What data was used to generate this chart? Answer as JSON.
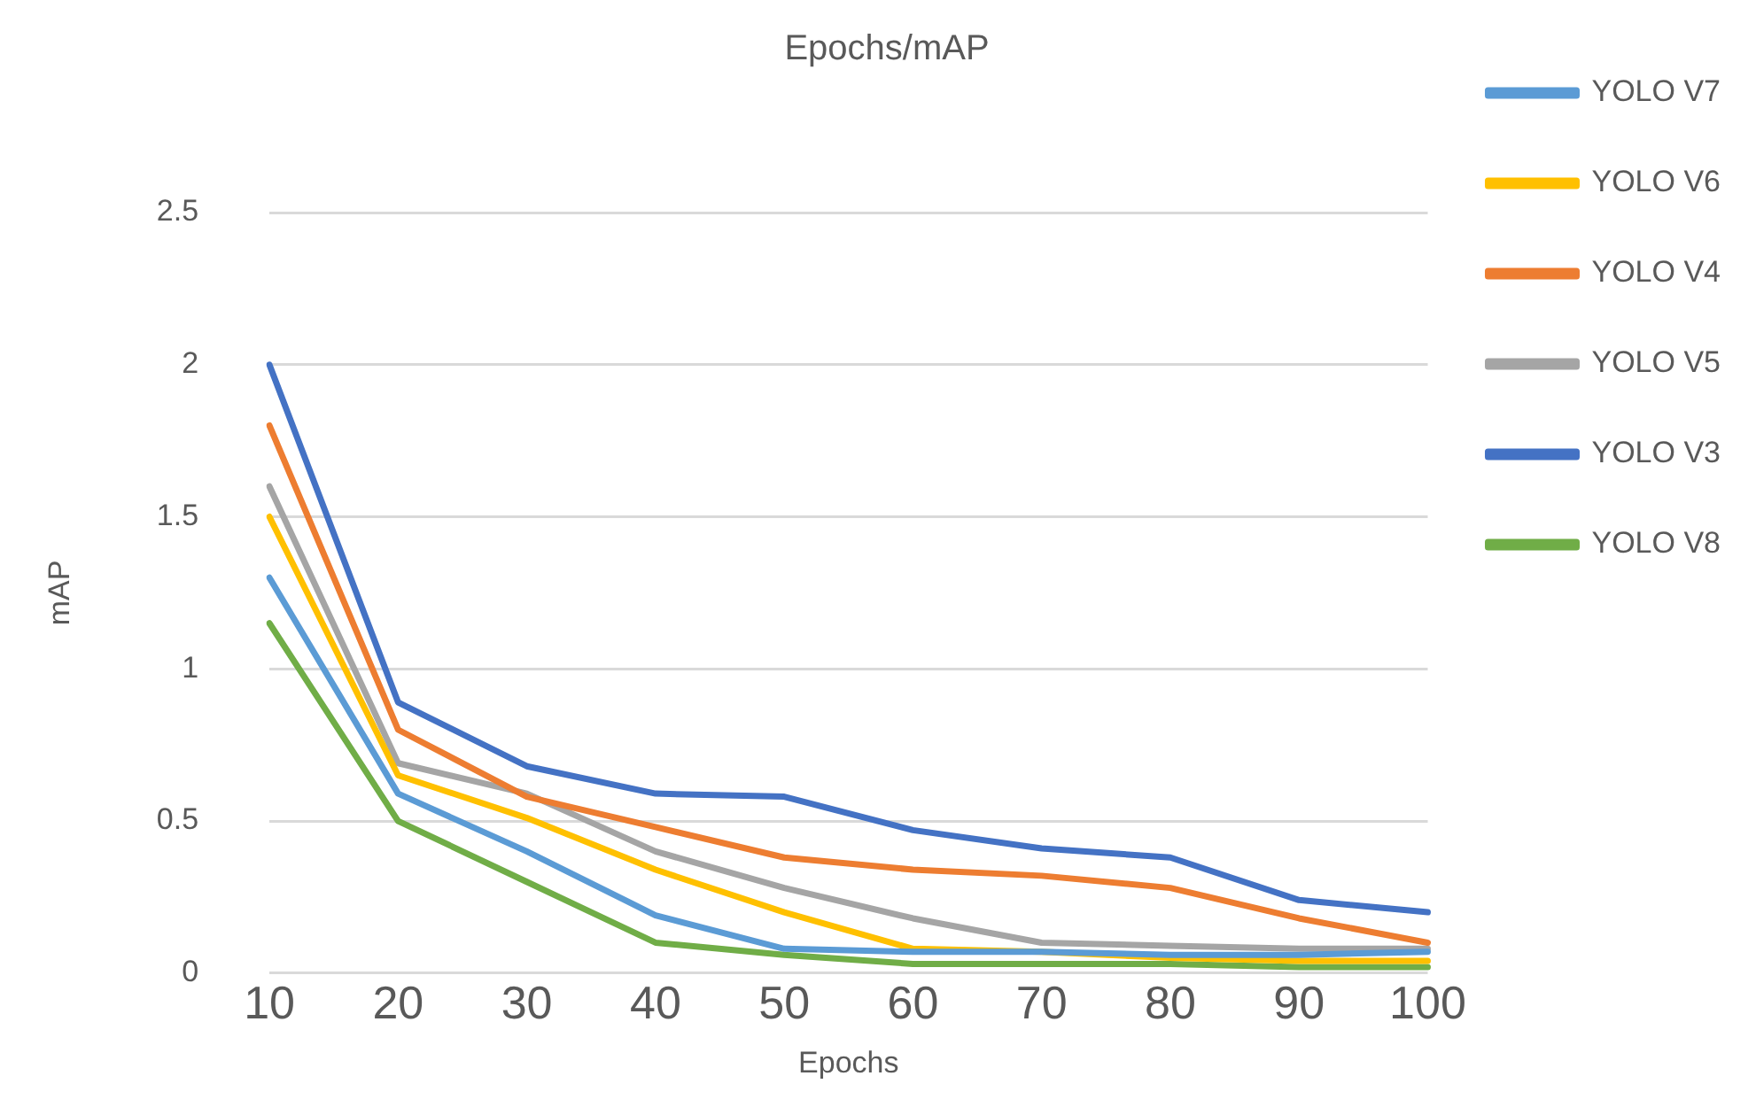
{
  "chart_data": {
    "type": "line",
    "title": "Epochs/mAP",
    "xlabel": "Epochs",
    "ylabel": "mAP",
    "categories": [
      "10",
      "20",
      "30",
      "40",
      "50",
      "60",
      "70",
      "80",
      "90",
      "100"
    ],
    "ylim": [
      0,
      2.5
    ],
    "yticks": [
      0,
      0.5,
      1,
      1.5,
      2,
      2.5
    ],
    "grid": "y",
    "legend": "right",
    "marker": "none",
    "line_style": "solid",
    "series": [
      {
        "name": "YOLO V7",
        "color": "#5b9bd5",
        "values": [
          1.3,
          0.59,
          0.4,
          0.19,
          0.08,
          0.07,
          0.07,
          0.06,
          0.06,
          0.07
        ]
      },
      {
        "name": "YOLO V6",
        "color": "#ffc000",
        "values": [
          1.5,
          0.65,
          0.51,
          0.34,
          0.2,
          0.08,
          0.07,
          0.05,
          0.04,
          0.04
        ]
      },
      {
        "name": "YOLO V4",
        "color": "#ed7d31",
        "values": [
          1.8,
          0.8,
          0.58,
          0.48,
          0.38,
          0.34,
          0.32,
          0.28,
          0.18,
          0.1
        ]
      },
      {
        "name": "YOLO V5",
        "color": "#a5a5a5",
        "values": [
          1.6,
          0.69,
          0.59,
          0.4,
          0.28,
          0.18,
          0.1,
          0.09,
          0.08,
          0.08
        ]
      },
      {
        "name": "YOLO V3",
        "color": "#4472c4",
        "values": [
          2.0,
          0.89,
          0.68,
          0.59,
          0.58,
          0.47,
          0.41,
          0.38,
          0.24,
          0.2
        ]
      },
      {
        "name": "YOLO V8",
        "color": "#70ad47",
        "values": [
          1.15,
          0.5,
          0.3,
          0.1,
          0.06,
          0.03,
          0.03,
          0.03,
          0.02,
          0.02
        ]
      }
    ]
  }
}
